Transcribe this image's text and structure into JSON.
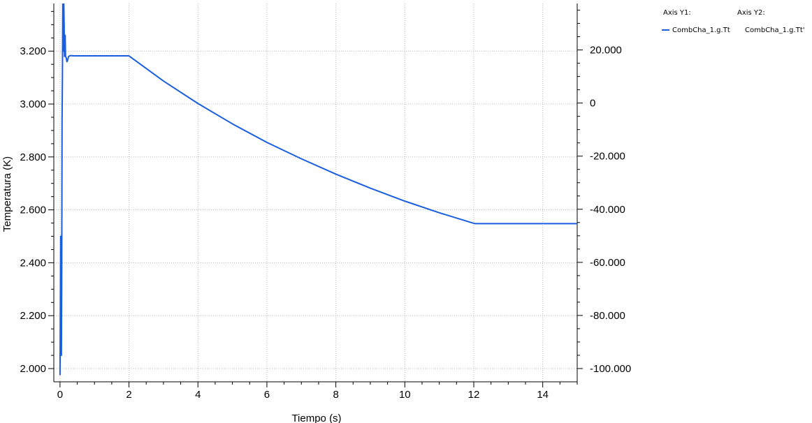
{
  "legend": {
    "axis_y1_header": "Axis Y1:",
    "axis_y2_header": "Axis Y2:",
    "y1_entry": "CombCha_1.g.Tt",
    "y2_entry": "CombCha_1.g.Tt'"
  },
  "colors": {
    "series": "#1a5ee0",
    "grid": "#b8b8b8",
    "axis": "#000000"
  },
  "chart_data": {
    "type": "line",
    "title": "",
    "xlabel": "Tiempo (s)",
    "ylabel": "Temperatura (K)",
    "xlim": [
      -0.18,
      15
    ],
    "ylim": [
      1950,
      3380
    ],
    "y2lim": [
      -105000,
      37500
    ],
    "grid": true,
    "legend_placement": "top-right",
    "x_ticks": [
      0,
      2,
      4,
      6,
      8,
      10,
      12,
      14
    ],
    "x_tick_labels": [
      "0",
      "2",
      "4",
      "6",
      "8",
      "10",
      "12",
      "14"
    ],
    "y_ticks": [
      2000,
      2200,
      2400,
      2600,
      2800,
      3000,
      3200
    ],
    "y_tick_labels": [
      "2.000",
      "2.200",
      "2.400",
      "2.600",
      "2.800",
      "3.000",
      "3.200"
    ],
    "y2_ticks": [
      -100000,
      -80000,
      -60000,
      -40000,
      -20000,
      0,
      20000
    ],
    "y2_tick_labels": [
      "-100.000",
      "-80.000",
      "-60.000",
      "-40.000",
      "-20.000",
      "0",
      "20.000"
    ],
    "series": [
      {
        "name": "CombCha_1.g.Tt",
        "axis": "y1",
        "x": [
          0.0,
          0.01,
          0.02,
          0.03,
          0.04,
          0.05,
          0.06,
          0.07,
          0.08,
          0.09,
          0.1,
          0.11,
          0.12,
          0.13,
          0.14,
          0.15,
          0.16,
          0.18,
          0.2,
          0.22,
          0.25,
          0.3,
          0.4,
          1.0,
          2.0,
          3.0,
          4.0,
          5.0,
          6.0,
          7.0,
          8.0,
          9.0,
          10.0,
          11.0,
          12.0,
          12.05,
          13.0,
          14.0,
          15.0
        ],
        "y": [
          1975,
          2240,
          2500,
          2150,
          2050,
          2350,
          2950,
          3100,
          3380,
          3300,
          3200,
          3380,
          3300,
          3180,
          3210,
          3260,
          3180,
          3175,
          3160,
          3165,
          3180,
          3183,
          3182,
          3182,
          3182,
          3087,
          3002,
          2925,
          2855,
          2793,
          2735,
          2682,
          2633,
          2589,
          2549,
          2548,
          2548,
          2548,
          2548
        ]
      }
    ]
  }
}
